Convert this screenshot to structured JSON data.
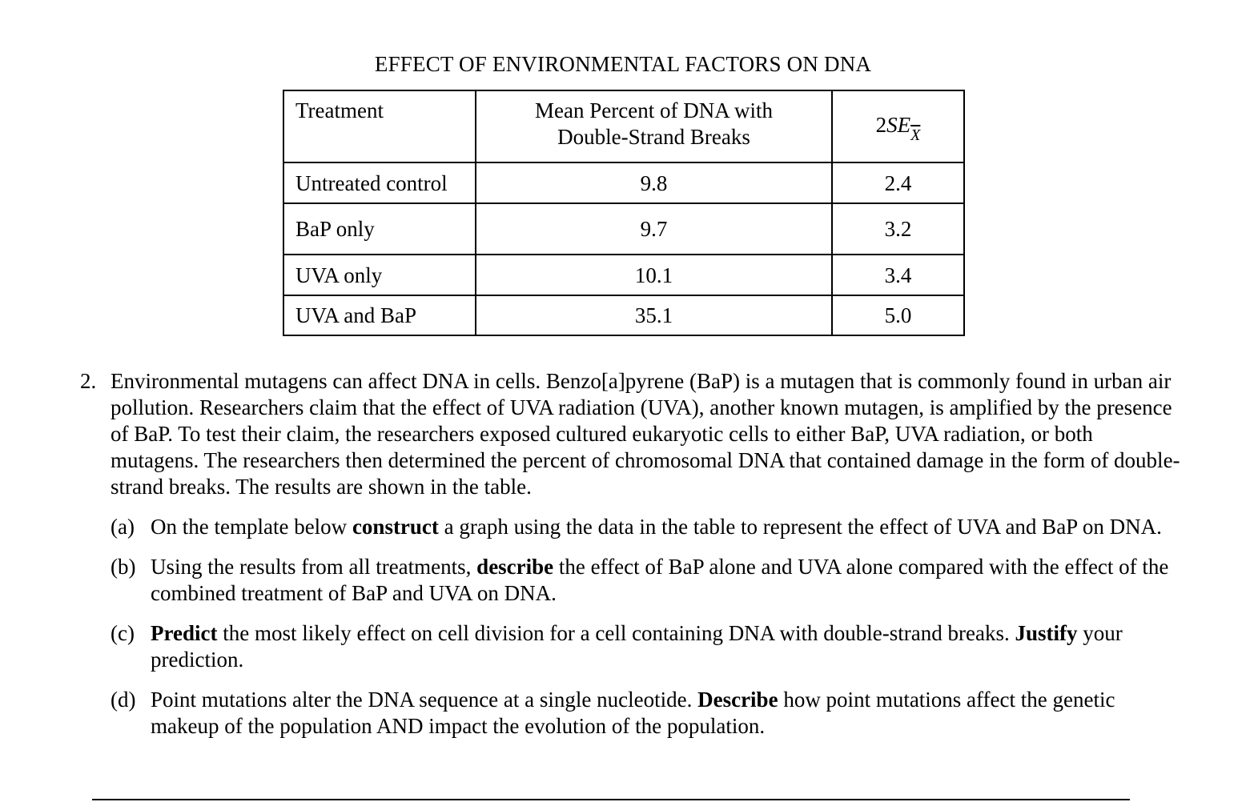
{
  "table": {
    "title": "EFFECT OF ENVIRONMENTAL FACTORS ON DNA",
    "headers": {
      "treatment": "Treatment",
      "mean_line1": "Mean Percent of DNA with",
      "mean_line2": "Double-Strand Breaks",
      "se_prefix": "2",
      "se_main": "SE",
      "se_sub": "X"
    },
    "rows": [
      {
        "treatment": "Untreated control",
        "mean": "9.8",
        "se": "2.4"
      },
      {
        "treatment": "BaP only",
        "mean": "9.7",
        "se": "3.2"
      },
      {
        "treatment": "UVA only",
        "mean": "10.1",
        "se": "3.4"
      },
      {
        "treatment": "UVA and BaP",
        "mean": "35.1",
        "se": "5.0"
      }
    ]
  },
  "question": {
    "number": "2.",
    "stem": "Environmental mutagens can affect DNA in cells. Benzo[a]pyrene (BaP) is a mutagen that is commonly found in urban air pollution. Researchers claim that the effect of UVA radiation (UVA), another known mutagen, is amplified by the presence of BaP. To test their claim, the researchers exposed cultured eukaryotic cells to either BaP, UVA radiation, or both mutagens.  The researchers then determined the percent of chromosomal DNA that contained damage in the form of double-strand breaks. The results are shown in the table.",
    "parts": [
      {
        "label": "(a)",
        "before": "On the template below ",
        "bold": "construct",
        "after": " a graph using the data in the table to represent the effect of UVA and BaP on DNA."
      },
      {
        "label": "(b)",
        "before": "Using the results from all treatments, ",
        "bold": "describe",
        "after": " the effect of BaP alone and UVA alone compared with the effect of the combined treatment of BaP and UVA on DNA."
      },
      {
        "label": "(c)",
        "bold": "Predict",
        "middle": " the most likely effect on cell division for a cell containing DNA with double-strand breaks. ",
        "bold2": "Justify",
        "after": " your prediction."
      },
      {
        "label": "(d)",
        "before": "Point mutations alter the DNA sequence at a single nucleotide. ",
        "bold": "Describe",
        "after": " how point mutations affect the genetic makeup of the population AND impact the evolution of the population."
      }
    ]
  }
}
